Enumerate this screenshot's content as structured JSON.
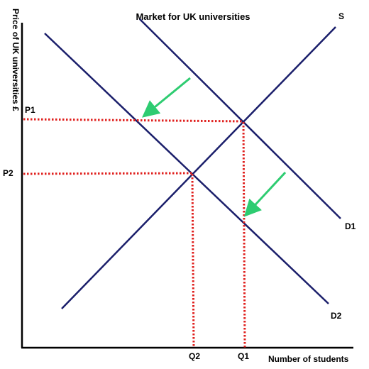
{
  "title": "Market for UK universities",
  "axes": {
    "x_label": "Number of students",
    "y_label": "Price of UK universities £"
  },
  "curves": {
    "supply": "S",
    "demand_original": "D1",
    "demand_new": "D2"
  },
  "markers": {
    "p1": "P1",
    "p2": "P2",
    "q1": "Q1",
    "q2": "Q2"
  },
  "colors": {
    "curve": "#1b1f6b",
    "dotted_guides": "#e0201e",
    "shift_arrows": "#2ecc71",
    "axis": "#000000"
  }
}
